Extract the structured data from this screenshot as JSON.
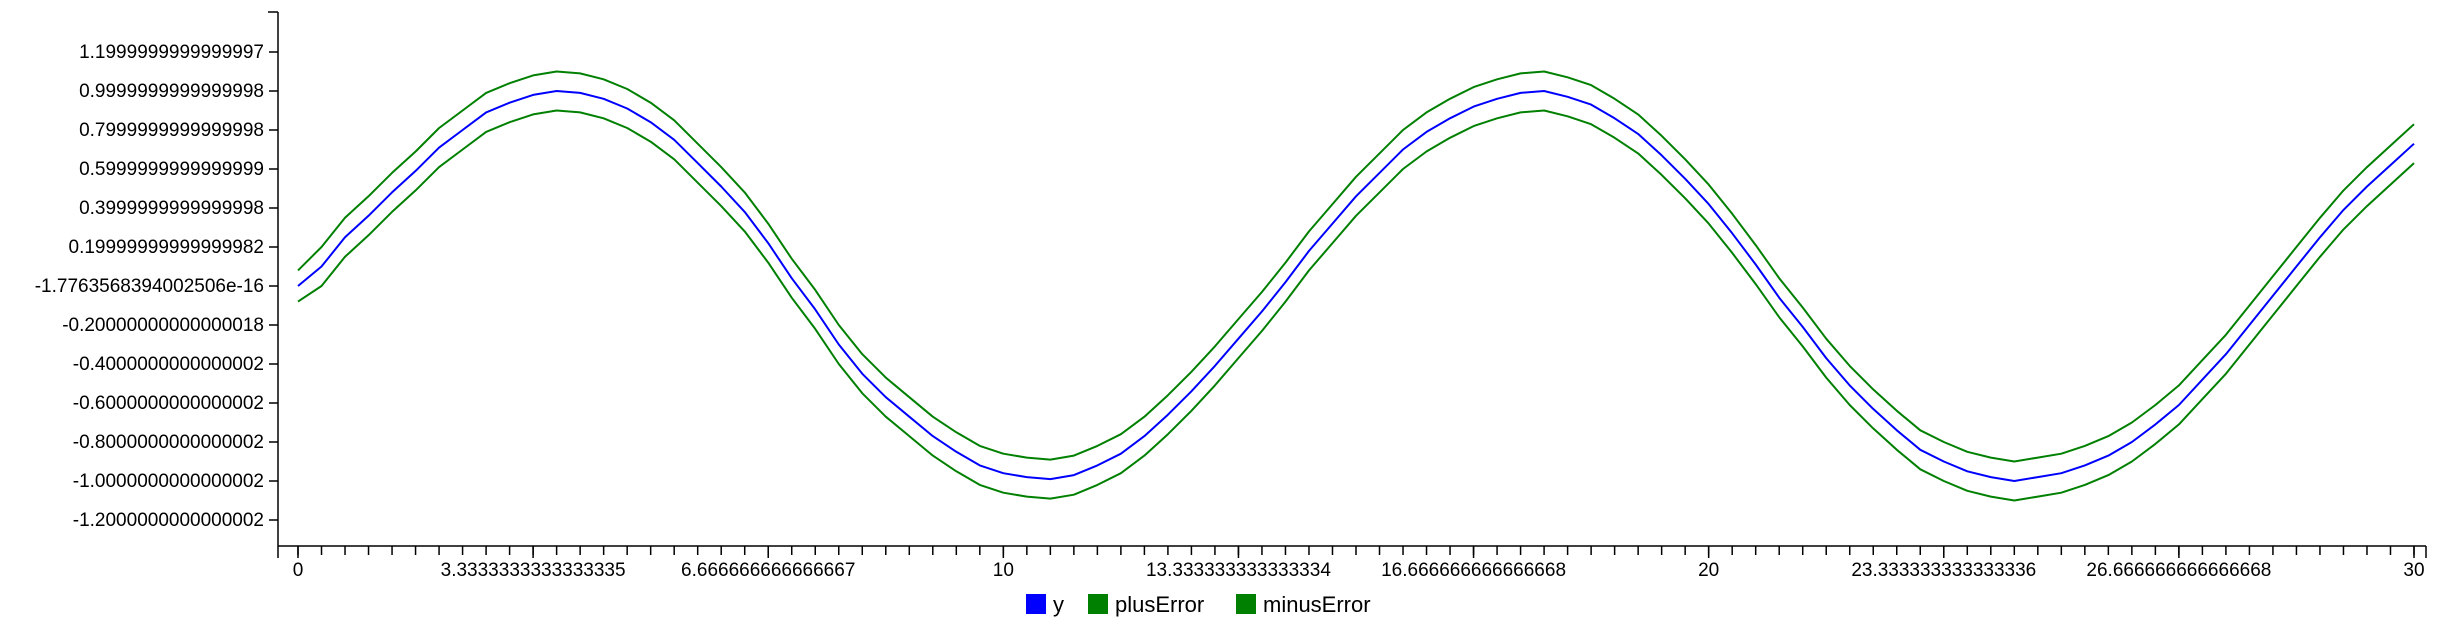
{
  "chart_data": {
    "type": "line",
    "title": "",
    "xlabel": "",
    "ylabel": "",
    "xlim": [
      0,
      30
    ],
    "ylim": [
      -1.3,
      1.3
    ],
    "grid": false,
    "legend_position": "bottom-center",
    "x_tick_labels": [
      "0",
      "3.3333333333333335",
      "6.666666666666667",
      "10",
      "13.333333333333334",
      "16.666666666666668",
      "20",
      "23.333333333333336",
      "26.666666666666668",
      "30"
    ],
    "x_tick_values": [
      0,
      3.3333333333333335,
      6.666666666666667,
      10,
      13.333333333333334,
      16.666666666666668,
      20,
      23.333333333333336,
      26.666666666666668,
      30
    ],
    "x_minor_tick_step": 0.3333333333333333,
    "y_tick_labels": [
      "1.1999999999999997",
      "0.9999999999999998",
      "0.7999999999999998",
      "0.5999999999999999",
      "0.3999999999999998",
      "0.19999999999999982",
      "-1.7763568394002506e-16",
      "-0.20000000000000018",
      "-0.4000000000000002",
      "-0.6000000000000002",
      "-0.8000000000000002",
      "-1.0000000000000002",
      "-1.2000000000000002"
    ],
    "y_tick_values": [
      1.2,
      1.0,
      0.8,
      0.6,
      0.4,
      0.2,
      0.0,
      -0.2,
      -0.4,
      -0.6,
      -0.8,
      -1.0,
      -1.2
    ],
    "x": [
      0,
      0.3333,
      0.6667,
      1.0,
      1.3333,
      1.6667,
      2.0,
      2.3333,
      2.6667,
      3.0,
      3.3333,
      3.6667,
      4.0,
      4.3333,
      4.6667,
      5.0,
      5.3333,
      5.6667,
      6.0,
      6.3333,
      6.6667,
      7.0,
      7.3333,
      7.6667,
      8.0,
      8.3333,
      8.6667,
      9.0,
      9.3333,
      9.6667,
      10.0,
      10.3333,
      10.6667,
      11.0,
      11.3333,
      11.6667,
      12.0,
      12.3333,
      12.6667,
      13.0,
      13.3333,
      13.6667,
      14.0,
      14.3333,
      14.6667,
      15.0,
      15.3333,
      15.6667,
      16.0,
      16.3333,
      16.6667,
      17.0,
      17.3333,
      17.6667,
      18.0,
      18.3333,
      18.6667,
      19.0,
      19.3333,
      19.6667,
      20.0,
      20.3333,
      20.6667,
      21.0,
      21.3333,
      21.6667,
      22.0,
      22.3333,
      22.6667,
      23.0,
      23.3333,
      23.6667,
      24.0,
      24.3333,
      24.6667,
      25.0,
      25.3333,
      25.6667,
      26.0,
      26.3333,
      26.6667,
      27.0,
      27.3333,
      27.6667,
      28.0,
      28.3333,
      28.6667,
      29.0,
      29.3333,
      29.6667,
      30.0
    ],
    "series": [
      {
        "name": "y",
        "color": "#0000ff",
        "values": [
          0.0,
          0.1,
          0.25,
          0.36,
          0.48,
          0.59,
          0.71,
          0.8,
          0.89,
          0.94,
          0.98,
          1.0,
          0.99,
          0.96,
          0.91,
          0.84,
          0.75,
          0.63,
          0.51,
          0.38,
          0.22,
          0.04,
          -0.12,
          -0.3,
          -0.45,
          -0.57,
          -0.67,
          -0.77,
          -0.85,
          -0.92,
          -0.96,
          -0.98,
          -0.99,
          -0.97,
          -0.92,
          -0.86,
          -0.77,
          -0.66,
          -0.54,
          -0.41,
          -0.27,
          -0.13,
          0.02,
          0.18,
          0.32,
          0.46,
          0.58,
          0.7,
          0.79,
          0.86,
          0.92,
          0.96,
          0.99,
          1.0,
          0.97,
          0.93,
          0.86,
          0.78,
          0.67,
          0.55,
          0.42,
          0.27,
          0.11,
          -0.06,
          -0.21,
          -0.37,
          -0.51,
          -0.63,
          -0.74,
          -0.84,
          -0.9,
          -0.95,
          -0.98,
          -1.0,
          -0.98,
          -0.96,
          -0.92,
          -0.87,
          -0.8,
          -0.71,
          -0.61,
          -0.48,
          -0.35,
          -0.2,
          -0.05,
          0.1,
          0.25,
          0.39,
          0.51,
          0.62,
          0.73
        ]
      },
      {
        "name": "plusError",
        "color": "#008000",
        "values": [
          0.08,
          0.2,
          0.35,
          0.46,
          0.58,
          0.69,
          0.81,
          0.9,
          0.99,
          1.04,
          1.08,
          1.1,
          1.09,
          1.06,
          1.01,
          0.94,
          0.85,
          0.73,
          0.61,
          0.48,
          0.32,
          0.14,
          -0.02,
          -0.2,
          -0.35,
          -0.47,
          -0.57,
          -0.67,
          -0.75,
          -0.82,
          -0.86,
          -0.88,
          -0.89,
          -0.87,
          -0.82,
          -0.76,
          -0.67,
          -0.56,
          -0.44,
          -0.31,
          -0.17,
          -0.03,
          0.12,
          0.28,
          0.42,
          0.56,
          0.68,
          0.8,
          0.89,
          0.96,
          1.02,
          1.06,
          1.09,
          1.1,
          1.07,
          1.03,
          0.96,
          0.88,
          0.77,
          0.65,
          0.52,
          0.37,
          0.21,
          0.04,
          -0.11,
          -0.27,
          -0.41,
          -0.53,
          -0.64,
          -0.74,
          -0.8,
          -0.85,
          -0.88,
          -0.9,
          -0.88,
          -0.86,
          -0.82,
          -0.77,
          -0.7,
          -0.61,
          -0.51,
          -0.38,
          -0.25,
          -0.1,
          0.05,
          0.2,
          0.35,
          0.49,
          0.61,
          0.72,
          0.83
        ]
      },
      {
        "name": "minusError",
        "color": "#008000",
        "values": [
          -0.08,
          0.0,
          0.15,
          0.26,
          0.38,
          0.49,
          0.61,
          0.7,
          0.79,
          0.84,
          0.88,
          0.9,
          0.89,
          0.86,
          0.81,
          0.74,
          0.65,
          0.53,
          0.41,
          0.28,
          0.12,
          -0.06,
          -0.22,
          -0.4,
          -0.55,
          -0.67,
          -0.77,
          -0.87,
          -0.95,
          -1.02,
          -1.06,
          -1.08,
          -1.09,
          -1.07,
          -1.02,
          -0.96,
          -0.87,
          -0.76,
          -0.64,
          -0.51,
          -0.37,
          -0.23,
          -0.08,
          0.08,
          0.22,
          0.36,
          0.48,
          0.6,
          0.69,
          0.76,
          0.82,
          0.86,
          0.89,
          0.9,
          0.87,
          0.83,
          0.76,
          0.68,
          0.57,
          0.45,
          0.32,
          0.17,
          0.01,
          -0.16,
          -0.31,
          -0.47,
          -0.61,
          -0.73,
          -0.84,
          -0.94,
          -1.0,
          -1.05,
          -1.08,
          -1.1,
          -1.08,
          -1.06,
          -1.02,
          -0.97,
          -0.9,
          -0.81,
          -0.71,
          -0.58,
          -0.45,
          -0.3,
          -0.15,
          0.0,
          0.15,
          0.29,
          0.41,
          0.52,
          0.63
        ]
      }
    ],
    "legend": [
      {
        "label": "y",
        "color": "#0000ff"
      },
      {
        "label": "plusError",
        "color": "#008000"
      },
      {
        "label": "minusError",
        "color": "#008000"
      }
    ]
  }
}
